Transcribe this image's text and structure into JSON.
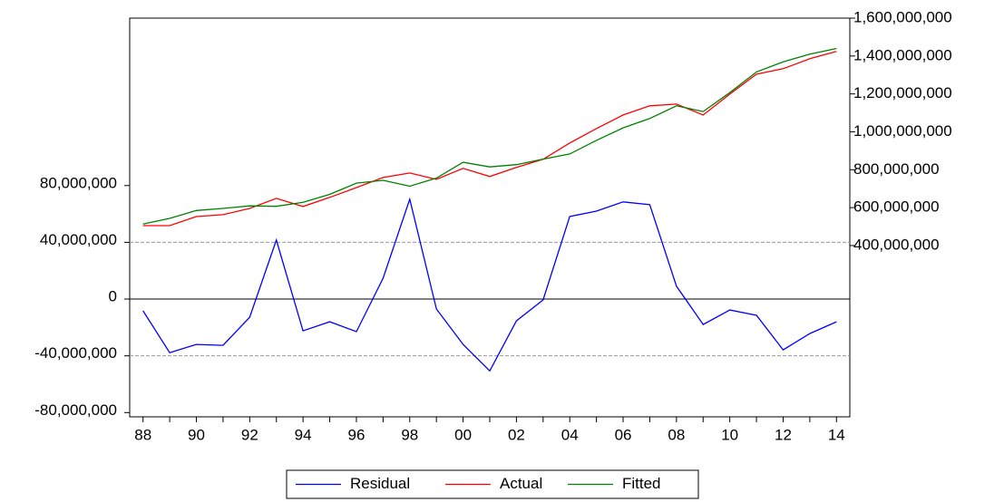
{
  "chart_data": {
    "type": "line",
    "categories": [
      "88",
      null,
      "90",
      null,
      "92",
      null,
      "94",
      null,
      "96",
      null,
      "98",
      null,
      "00",
      null,
      "02",
      null,
      "04",
      null,
      "06",
      null,
      "08",
      null,
      "10",
      null,
      "12",
      null,
      "14"
    ],
    "series": [
      {
        "name": "Residual",
        "color": "#0000ff",
        "axis": "y",
        "values": [
          -8300000,
          -37800000,
          -32000000,
          -32600000,
          -12800000,
          41600000,
          -22400000,
          -16000000,
          -23000000,
          14700000,
          70400000,
          -7000000,
          -32000000,
          -50600000,
          -15400000,
          -600000,
          58200000,
          62000000,
          68500000,
          66600000,
          9000000,
          -17900000,
          -7700000,
          -11500000,
          -35800000,
          -24300000,
          -16000000
        ]
      },
      {
        "name": "Actual",
        "color": "#ff0000",
        "axis": "y2",
        "values": [
          505000000,
          505000000,
          553000000,
          563000000,
          596000000,
          649000000,
          606000000,
          654000000,
          706000000,
          759000000,
          783000000,
          749000000,
          807000000,
          764000000,
          812000000,
          855000000,
          941000000,
          1017000000,
          1089000000,
          1137000000,
          1146000000,
          1089000000,
          1199000000,
          1304000000,
          1333000000,
          1386000000,
          1424000000
        ]
      },
      {
        "name": "Fitted",
        "color": "#008000",
        "axis": "y2",
        "values": [
          513000000,
          543000000,
          585000000,
          596000000,
          609000000,
          607000000,
          628000000,
          670000000,
          729000000,
          744000000,
          713000000,
          756000000,
          839000000,
          815000000,
          827000000,
          856000000,
          883000000,
          955000000,
          1021000000,
          1070000000,
          1137000000,
          1107000000,
          1207000000,
          1316000000,
          1369000000,
          1410000000,
          1440000000
        ]
      }
    ],
    "ylim": [
      -83000000,
      198000000
    ],
    "yticks": [
      {
        "value": -80000000,
        "label": "-80,000,000"
      },
      {
        "value": -40000000,
        "label": "-40,000,000"
      },
      0,
      {
        "value": 40000000,
        "label": "40,000,000"
      },
      {
        "value": 80000000,
        "label": "80,000,000"
      }
    ],
    "y2lim": [
      -504000000,
      1600000000
    ],
    "y2ticks": [
      {
        "value": 400000000,
        "label": "400,000,000"
      },
      {
        "value": 600000000,
        "label": "600,000,000"
      },
      {
        "value": 800000000,
        "label": "800,000,000"
      },
      {
        "value": 1000000000,
        "label": "1,000,000,000"
      },
      {
        "value": 1200000000,
        "label": "1,200,000,000"
      },
      {
        "value": 1400000000,
        "label": "1,400,000,000"
      },
      {
        "value": 1600000000,
        "label": "1,600,000,000"
      }
    ],
    "dashed_lines": [
      40000000,
      -40000000
    ],
    "zero_line": true,
    "legend": "bottom"
  }
}
